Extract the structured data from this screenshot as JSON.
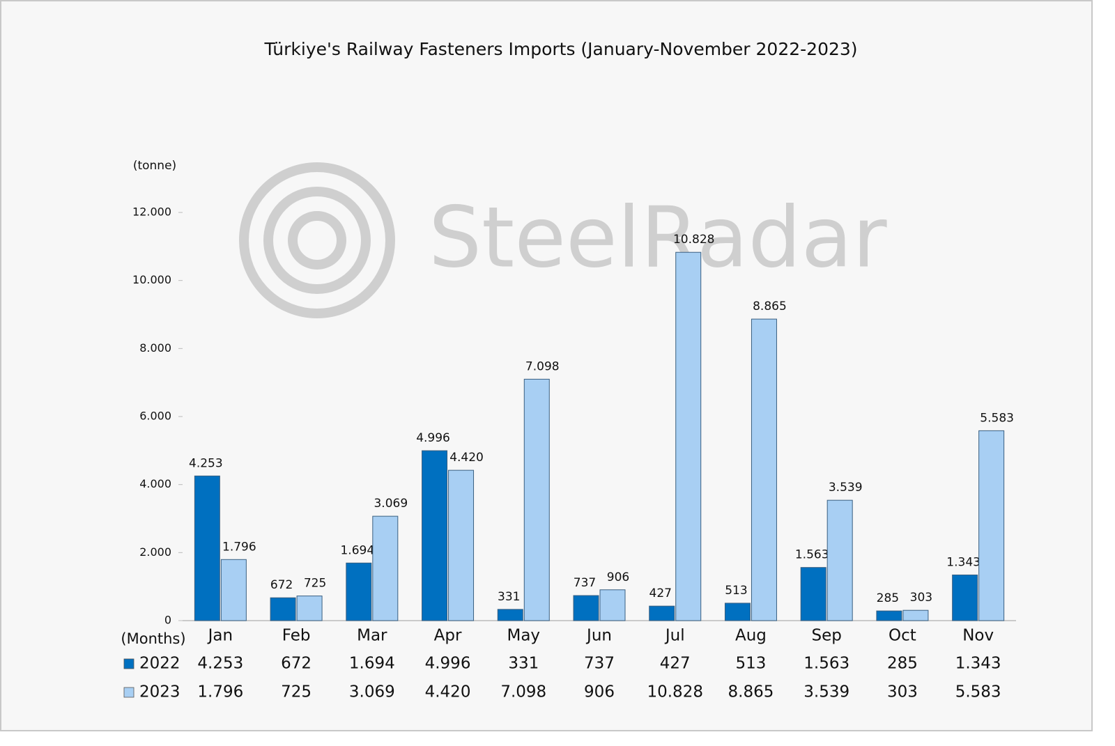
{
  "chart_data": {
    "type": "bar",
    "title": "Türkiye's Railway Fasteners Imports (January-November 2022-2023)",
    "y_label": "(tonne)",
    "x_label": "(Months)",
    "watermark": "SteelRadar",
    "categories": [
      "Jan",
      "Feb",
      "Mar",
      "Apr",
      "May",
      "Jun",
      "Jul",
      "Aug",
      "Sep",
      "Oct",
      "Nov"
    ],
    "series": [
      {
        "name": "2022",
        "color": "#0070c0",
        "values": [
          4253,
          672,
          1694,
          4996,
          331,
          737,
          427,
          513,
          1563,
          285,
          1343
        ],
        "value_labels": [
          "4.253",
          "672",
          "1.694",
          "4.996",
          "331",
          "737",
          "427",
          "513",
          "1.563",
          "285",
          "1.343"
        ]
      },
      {
        "name": "2023",
        "color": "#a8cff3",
        "values": [
          1796,
          725,
          3069,
          4420,
          7098,
          906,
          10828,
          8865,
          3539,
          303,
          5583
        ],
        "value_labels": [
          "1.796",
          "725",
          "3.069",
          "4.420",
          "7.098",
          "906",
          "10.828",
          "8.865",
          "3.539",
          "303",
          "5.583"
        ]
      }
    ],
    "ylim": [
      0,
      12000
    ],
    "yticks": [
      0,
      {
        "value": 2000,
        "label": "2.000"
      },
      {
        "value": 4000,
        "label": "4.000"
      },
      {
        "value": 6000,
        "label": "6.000"
      },
      {
        "value": 8000,
        "label": "8.000"
      },
      {
        "value": 10000,
        "label": "10.000"
      },
      {
        "value": 12000,
        "label": "12.000"
      }
    ],
    "grid": false
  }
}
